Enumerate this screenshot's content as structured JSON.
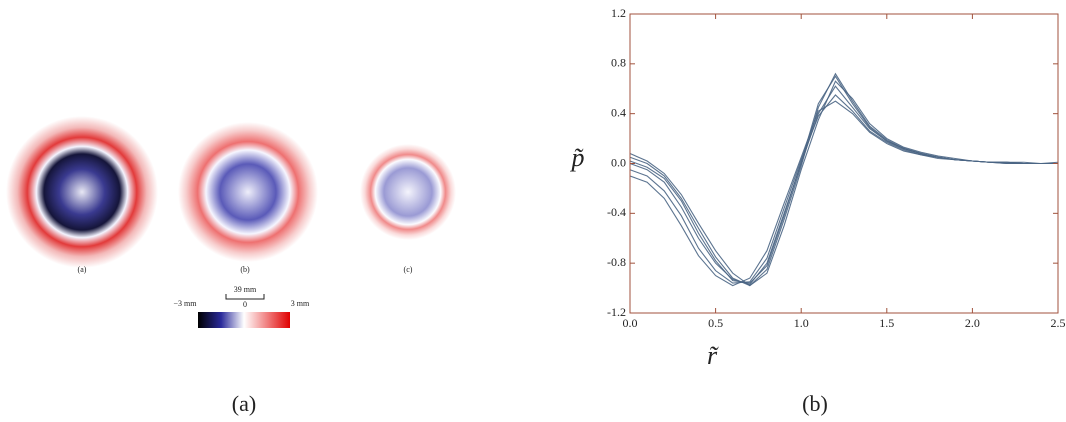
{
  "figure_a": {
    "panel_labels": [
      "(a)",
      "(b)",
      "(c)"
    ],
    "scale_bar": "39 mm",
    "colorbar": {
      "min_label": "−3 mm",
      "mid_label": "0",
      "max_label": "3 mm"
    },
    "caption": "(a)"
  },
  "chart_data": {
    "type": "line",
    "xlabel": "r̃",
    "ylabel": "p̃",
    "caption": "(b)",
    "x": [
      0,
      0.1,
      0.2,
      0.3,
      0.4,
      0.5,
      0.6,
      0.7,
      0.8,
      0.9,
      1.0,
      1.1,
      1.2,
      1.3,
      1.4,
      1.5,
      1.6,
      1.7,
      1.8,
      1.9,
      2.0,
      2.1,
      2.2,
      2.3,
      2.4,
      2.5
    ],
    "series": [
      {
        "color": "#4a6584",
        "values": [
          0,
          -0.05,
          -0.15,
          -0.35,
          -0.6,
          -0.8,
          -0.93,
          -0.97,
          -0.8,
          -0.4,
          0,
          0.4,
          0.62,
          0.45,
          0.28,
          0.18,
          0.12,
          0.08,
          0.05,
          0.03,
          0.02,
          0.01,
          0.01,
          0,
          0,
          0
        ]
      },
      {
        "color": "#4a6584",
        "values": [
          0.05,
          0,
          -0.1,
          -0.28,
          -0.52,
          -0.75,
          -0.92,
          -0.98,
          -0.85,
          -0.45,
          -0.02,
          0.45,
          0.72,
          0.5,
          0.3,
          0.19,
          0.12,
          0.08,
          0.05,
          0.03,
          0.02,
          0.01,
          0.01,
          0.01,
          0,
          0
        ]
      },
      {
        "color": "#4a6584",
        "values": [
          -0.05,
          -0.1,
          -0.22,
          -0.42,
          -0.68,
          -0.86,
          -0.96,
          -0.95,
          -0.76,
          -0.36,
          0.03,
          0.38,
          0.55,
          0.42,
          0.26,
          0.17,
          0.11,
          0.07,
          0.05,
          0.03,
          0.02,
          0.01,
          0,
          0,
          0,
          0
        ]
      },
      {
        "color": "#4a6584",
        "values": [
          0.08,
          0.02,
          -0.08,
          -0.25,
          -0.48,
          -0.7,
          -0.88,
          -0.98,
          -0.88,
          -0.5,
          -0.05,
          0.35,
          0.66,
          0.52,
          0.32,
          0.2,
          0.13,
          0.09,
          0.06,
          0.04,
          0.02,
          0.01,
          0.01,
          0,
          0,
          0
        ]
      },
      {
        "color": "#4a6584",
        "values": [
          -0.1,
          -0.15,
          -0.28,
          -0.5,
          -0.74,
          -0.9,
          -0.98,
          -0.92,
          -0.7,
          -0.32,
          0.05,
          0.42,
          0.5,
          0.4,
          0.25,
          0.16,
          0.1,
          0.07,
          0.04,
          0.03,
          0.02,
          0.01,
          0,
          0,
          0,
          0.01
        ]
      },
      {
        "color": "#4a6584",
        "values": [
          0.02,
          -0.03,
          -0.12,
          -0.3,
          -0.56,
          -0.78,
          -0.94,
          -0.96,
          -0.82,
          -0.42,
          0.01,
          0.48,
          0.7,
          0.48,
          0.29,
          0.18,
          0.12,
          0.08,
          0.05,
          0.03,
          0.02,
          0.01,
          0.01,
          0,
          0,
          0
        ]
      }
    ],
    "xlim": [
      0,
      2.5
    ],
    "ylim": [
      -1.2,
      1.2
    ],
    "xticks": [
      {
        "value": 0,
        "label": "0.0"
      },
      0.5,
      {
        "value": 1,
        "label": "1.0"
      },
      1.5,
      {
        "value": 2,
        "label": "2.0"
      },
      2.5
    ],
    "yticks": [
      -1.2,
      -0.8,
      -0.4,
      {
        "value": 0,
        "label": "0.0"
      },
      0.4,
      0.8,
      1.2
    ],
    "axis_color": "#a0523c"
  }
}
